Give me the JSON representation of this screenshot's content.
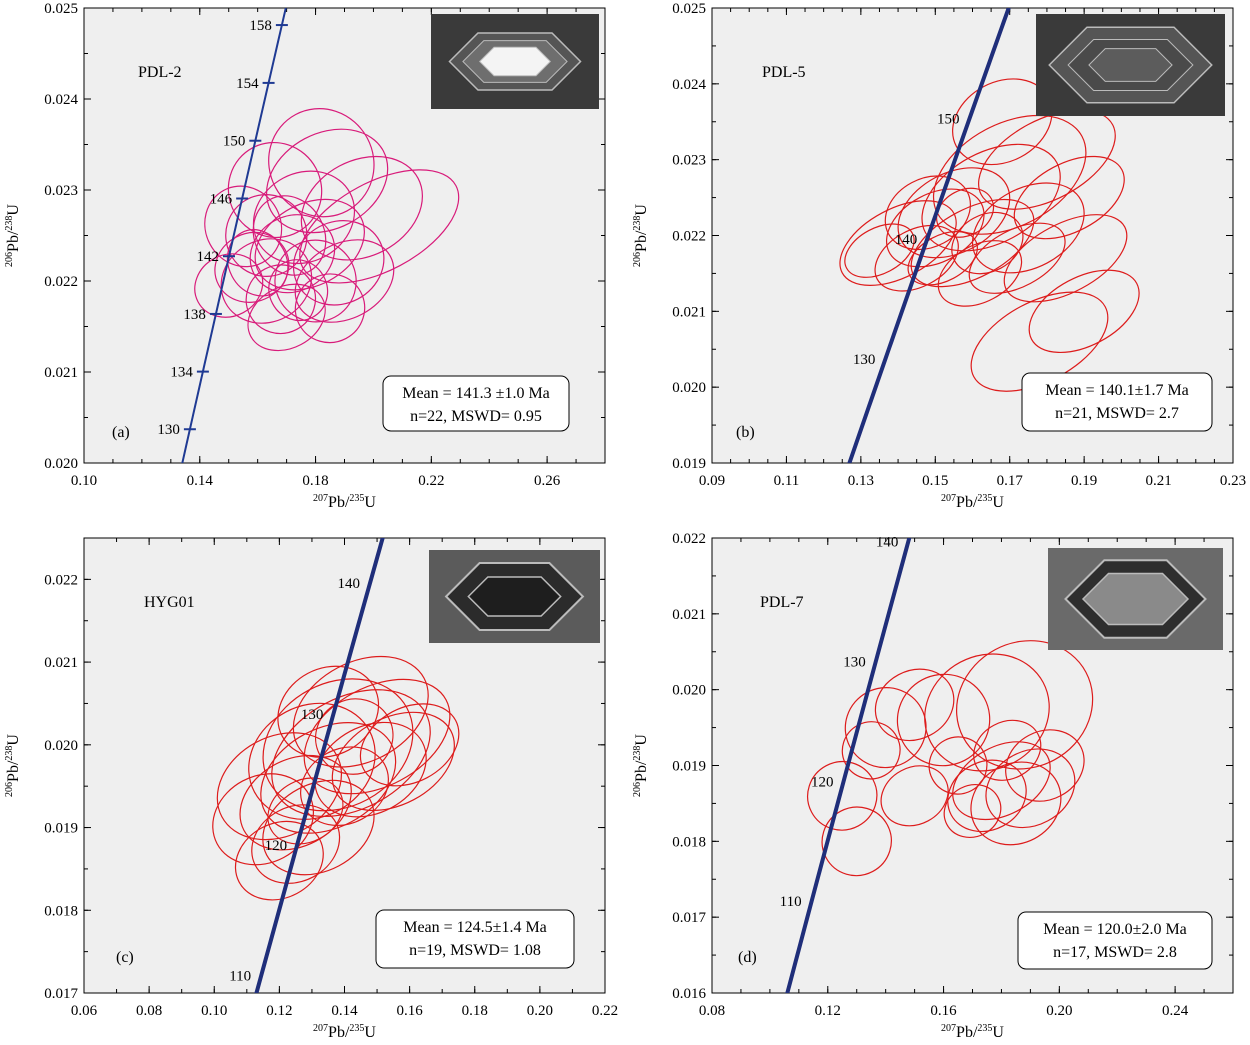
{
  "chart_data": [
    {
      "type": "scatter",
      "panel": "(a)",
      "sample": "PDL-2",
      "xlabel_main": "Pb/",
      "xlabel_sup1": "207",
      "xlabel_sup2": "235",
      "xlabel_end": "U",
      "ylabel_sup1": "206",
      "ylabel_main": "Pb/",
      "ylabel_sup2": "238",
      "ylabel_end": "U",
      "xlim": [
        0.1,
        0.28
      ],
      "ylim": [
        0.02,
        0.025
      ],
      "xticks": [
        0.1,
        0.14,
        0.18,
        0.22,
        0.26
      ],
      "xtick_labels": [
        "0.10",
        "0.14",
        "0.18",
        "0.22",
        "0.26"
      ],
      "yticks": [
        0.02,
        0.021,
        0.022,
        0.023,
        0.024,
        0.025
      ],
      "ytick_labels": [
        "0.020",
        "0.021",
        "0.022",
        "0.023",
        "0.024",
        "0.025"
      ],
      "xminor": 0.01,
      "yminor": 0.0005,
      "concordia": {
        "color": "#1f3a93",
        "width": 2,
        "ages": [
          126,
          160
        ],
        "marks": [
          {
            "age": 130,
            "label": "130"
          },
          {
            "age": 134,
            "label": "134"
          },
          {
            "age": 138,
            "label": "138"
          },
          {
            "age": 142,
            "label": "142"
          },
          {
            "age": 146,
            "label": "146"
          },
          {
            "age": 150,
            "label": "150"
          },
          {
            "age": 154,
            "label": "154"
          },
          {
            "age": 158,
            "label": "158"
          }
        ],
        "tickmarks": true
      },
      "ellipse_color": "#d81b7a",
      "ellipses": [
        [
          0.15,
          0.02195,
          0.012,
          0.00045
        ],
        [
          0.158,
          0.02215,
          0.013,
          0.0005
        ],
        [
          0.163,
          0.0225,
          0.014,
          0.0006
        ],
        [
          0.168,
          0.0218,
          0.012,
          0.0005
        ],
        [
          0.172,
          0.0223,
          0.015,
          0.00055
        ],
        [
          0.176,
          0.0227,
          0.018,
          0.00065
        ],
        [
          0.18,
          0.022,
          0.014,
          0.0006
        ],
        [
          0.184,
          0.0231,
          0.022,
          0.0007
        ],
        [
          0.178,
          0.0224,
          0.02,
          0.0006
        ],
        [
          0.166,
          0.023,
          0.016,
          0.0007
        ],
        [
          0.155,
          0.0226,
          0.013,
          0.0006
        ],
        [
          0.17,
          0.0216,
          0.014,
          0.00045
        ],
        [
          0.188,
          0.0222,
          0.016,
          0.0006
        ],
        [
          0.196,
          0.0228,
          0.022,
          0.0007
        ],
        [
          0.202,
          0.0226,
          0.03,
          0.00065
        ],
        [
          0.16,
          0.0222,
          0.01,
          0.0005
        ],
        [
          0.174,
          0.0219,
          0.01,
          0.00045
        ],
        [
          0.185,
          0.0217,
          0.012,
          0.0005
        ],
        [
          0.182,
          0.0233,
          0.018,
          0.0008
        ],
        [
          0.163,
          0.022,
          0.016,
          0.0006
        ],
        [
          0.171,
          0.0225,
          0.012,
          0.0006
        ],
        [
          0.19,
          0.022,
          0.018,
          0.00055
        ]
      ],
      "result_line1": "Mean = 141.3 ±1.0 Ma",
      "result_line2": "n=22, MSWD= 0.95"
    },
    {
      "type": "scatter",
      "panel": "(b)",
      "sample": "PDL-5",
      "xlabel_main": "Pb/",
      "xlabel_sup1": "207",
      "xlabel_sup2": "235",
      "xlabel_end": "U",
      "ylabel_sup1": "206",
      "ylabel_main": "Pb/",
      "ylabel_sup2": "238",
      "ylabel_end": "U",
      "xlim": [
        0.09,
        0.23
      ],
      "ylim": [
        0.019,
        0.025
      ],
      "xticks": [
        0.09,
        0.11,
        0.13,
        0.15,
        0.17,
        0.19,
        0.21,
        0.23
      ],
      "xtick_labels": [
        "0.09",
        "0.11",
        "0.13",
        "0.15",
        "0.17",
        "0.19",
        "0.21",
        "0.23"
      ],
      "yticks": [
        0.019,
        0.02,
        0.021,
        0.022,
        0.023,
        0.024,
        0.025
      ],
      "ytick_labels": [
        "0.019",
        "0.020",
        "0.021",
        "0.022",
        "0.023",
        "0.024",
        "0.025"
      ],
      "xminor": 0.005,
      "yminor": 0.0005,
      "concordia": {
        "color": "#1f2e7a",
        "width": 4,
        "ages": [
          120,
          162
        ],
        "marks": [
          {
            "age": 130,
            "label": "130"
          },
          {
            "age": 140,
            "label": "140"
          },
          {
            "age": 150,
            "label": "150"
          }
        ],
        "tickmarks": false
      },
      "ellipse_color": "#dd1c1c",
      "ellipses": [
        [
          0.14,
          0.0219,
          0.017,
          0.0006
        ],
        [
          0.145,
          0.0217,
          0.012,
          0.0005
        ],
        [
          0.15,
          0.0221,
          0.014,
          0.0006
        ],
        [
          0.155,
          0.0223,
          0.016,
          0.0007
        ],
        [
          0.16,
          0.0219,
          0.018,
          0.0006
        ],
        [
          0.165,
          0.0225,
          0.02,
          0.0008
        ],
        [
          0.17,
          0.0228,
          0.022,
          0.0009
        ],
        [
          0.175,
          0.0221,
          0.016,
          0.0007
        ],
        [
          0.18,
          0.023,
          0.02,
          0.0007
        ],
        [
          0.185,
          0.0217,
          0.018,
          0.0006
        ],
        [
          0.178,
          0.0206,
          0.02,
          0.0007
        ],
        [
          0.19,
          0.021,
          0.016,
          0.0006
        ],
        [
          0.162,
          0.0215,
          0.012,
          0.0005
        ],
        [
          0.152,
          0.0217,
          0.01,
          0.0004
        ],
        [
          0.158,
          0.0223,
          0.008,
          0.0004
        ],
        [
          0.172,
          0.0217,
          0.014,
          0.0005
        ],
        [
          0.168,
          0.0235,
          0.014,
          0.0007
        ],
        [
          0.186,
          0.0225,
          0.016,
          0.0006
        ],
        [
          0.135,
          0.0218,
          0.01,
          0.0004
        ],
        [
          0.148,
          0.0223,
          0.012,
          0.0006
        ],
        [
          0.164,
          0.0219,
          0.01,
          0.0005
        ]
      ],
      "result_line1": "Mean = 140.1±1.7 Ma",
      "result_line2": "n=21, MSWD= 2.7"
    },
    {
      "type": "scatter",
      "panel": "(c)",
      "sample": "HYG01",
      "xlabel_main": "Pb/",
      "xlabel_sup1": "207",
      "xlabel_sup2": "235",
      "xlabel_end": "U",
      "ylabel_sup1": "206",
      "ylabel_main": "Pb/",
      "ylabel_sup2": "238",
      "ylabel_end": "U",
      "xlim": [
        0.06,
        0.22
      ],
      "ylim": [
        0.017,
        0.0225
      ],
      "xticks": [
        0.06,
        0.08,
        0.1,
        0.12,
        0.14,
        0.16,
        0.18,
        0.2,
        0.22
      ],
      "xtick_labels": [
        "0.06",
        "0.08",
        "0.10",
        "0.12",
        "0.14",
        "0.16",
        "0.18",
        "0.20",
        "0.22"
      ],
      "yticks": [
        0.017,
        0.018,
        0.019,
        0.02,
        0.021,
        0.022
      ],
      "ytick_labels": [
        "0.017",
        "0.018",
        "0.019",
        "0.020",
        "0.021",
        "0.022"
      ],
      "xminor": 0.01,
      "yminor": 0.0005,
      "concordia": {
        "color": "#1f2e7a",
        "width": 4,
        "ages": [
          108,
          144
        ],
        "marks": [
          {
            "age": 110,
            "label": "110"
          },
          {
            "age": 120,
            "label": "120"
          },
          {
            "age": 130,
            "label": "130"
          },
          {
            "age": 140,
            "label": "140"
          }
        ],
        "tickmarks": false
      },
      "ellipse_color": "#dd1c1c",
      "ellipses": [
        [
          0.115,
          0.0191,
          0.016,
          0.0007
        ],
        [
          0.12,
          0.0195,
          0.02,
          0.0008
        ],
        [
          0.125,
          0.0193,
          0.018,
          0.0007
        ],
        [
          0.13,
          0.0198,
          0.02,
          0.0009
        ],
        [
          0.135,
          0.0196,
          0.022,
          0.0008
        ],
        [
          0.138,
          0.02,
          0.024,
          0.001
        ],
        [
          0.142,
          0.0199,
          0.026,
          0.0009
        ],
        [
          0.145,
          0.0204,
          0.022,
          0.0008
        ],
        [
          0.15,
          0.0201,
          0.024,
          0.0008
        ],
        [
          0.155,
          0.0198,
          0.02,
          0.0007
        ],
        [
          0.132,
          0.019,
          0.018,
          0.0007
        ],
        [
          0.125,
          0.0188,
          0.014,
          0.0006
        ],
        [
          0.12,
          0.0186,
          0.014,
          0.0006
        ],
        [
          0.14,
          0.0195,
          0.014,
          0.0006
        ],
        [
          0.148,
          0.0197,
          0.018,
          0.0007
        ],
        [
          0.16,
          0.02,
          0.016,
          0.0006
        ],
        [
          0.135,
          0.0204,
          0.016,
          0.0007
        ],
        [
          0.128,
          0.0192,
          0.012,
          0.0005
        ],
        [
          0.143,
          0.0201,
          0.012,
          0.0006
        ]
      ],
      "result_line1": "Mean = 124.5±1.4 Ma",
      "result_line2": "n=19, MSWD= 1.08"
    },
    {
      "type": "scatter",
      "panel": "(d)",
      "sample": "PDL-7",
      "xlabel_main": "Pb/",
      "xlabel_sup1": "207",
      "xlabel_sup2": "235",
      "xlabel_end": "U",
      "ylabel_sup1": "206",
      "ylabel_main": "Pb/",
      "ylabel_sup2": "238",
      "ylabel_end": "U",
      "xlim": [
        0.08,
        0.26
      ],
      "ylim": [
        0.016,
        0.022
      ],
      "xticks": [
        0.08,
        0.12,
        0.16,
        0.2,
        0.24
      ],
      "xtick_labels": [
        "0.08",
        "0.12",
        "0.16",
        "0.20",
        "0.24"
      ],
      "yticks": [
        0.016,
        0.017,
        0.018,
        0.019,
        0.02,
        0.021,
        0.022
      ],
      "ytick_labels": [
        "0.016",
        "0.017",
        "0.018",
        "0.019",
        "0.020",
        "0.021",
        "0.022"
      ],
      "xminor": 0.01,
      "yminor": 0.0005,
      "concordia": {
        "color": "#1f2e7a",
        "width": 4,
        "ages": [
          101,
          141
        ],
        "marks": [
          {
            "age": 110,
            "label": "110"
          },
          {
            "age": 120,
            "label": "120"
          },
          {
            "age": 130,
            "label": "130"
          },
          {
            "age": 140,
            "label": "140"
          }
        ],
        "tickmarks": false
      },
      "ellipse_color": "#dd1c1c",
      "ellipses": [
        [
          0.125,
          0.0186,
          0.012,
          0.0006
        ],
        [
          0.13,
          0.018,
          0.012,
          0.0006
        ],
        [
          0.135,
          0.0192,
          0.01,
          0.0005
        ],
        [
          0.14,
          0.0195,
          0.014,
          0.0007
        ],
        [
          0.15,
          0.0198,
          0.014,
          0.0006
        ],
        [
          0.16,
          0.0196,
          0.016,
          0.0008
        ],
        [
          0.165,
          0.019,
          0.01,
          0.0005
        ],
        [
          0.175,
          0.0197,
          0.022,
          0.001
        ],
        [
          0.188,
          0.0198,
          0.024,
          0.0011
        ],
        [
          0.175,
          0.0186,
          0.014,
          0.0006
        ],
        [
          0.18,
          0.0188,
          0.018,
          0.0006
        ],
        [
          0.185,
          0.0185,
          0.016,
          0.0007
        ],
        [
          0.19,
          0.0187,
          0.016,
          0.00065
        ],
        [
          0.195,
          0.019,
          0.014,
          0.0006
        ],
        [
          0.182,
          0.0192,
          0.012,
          0.0005
        ],
        [
          0.15,
          0.0186,
          0.012,
          0.0005
        ],
        [
          0.17,
          0.0184,
          0.01,
          0.00045
        ]
      ],
      "result_line1": "Mean = 120.0±2.0 Ma",
      "result_line2": "n=17, MSWD= 2.8"
    }
  ]
}
